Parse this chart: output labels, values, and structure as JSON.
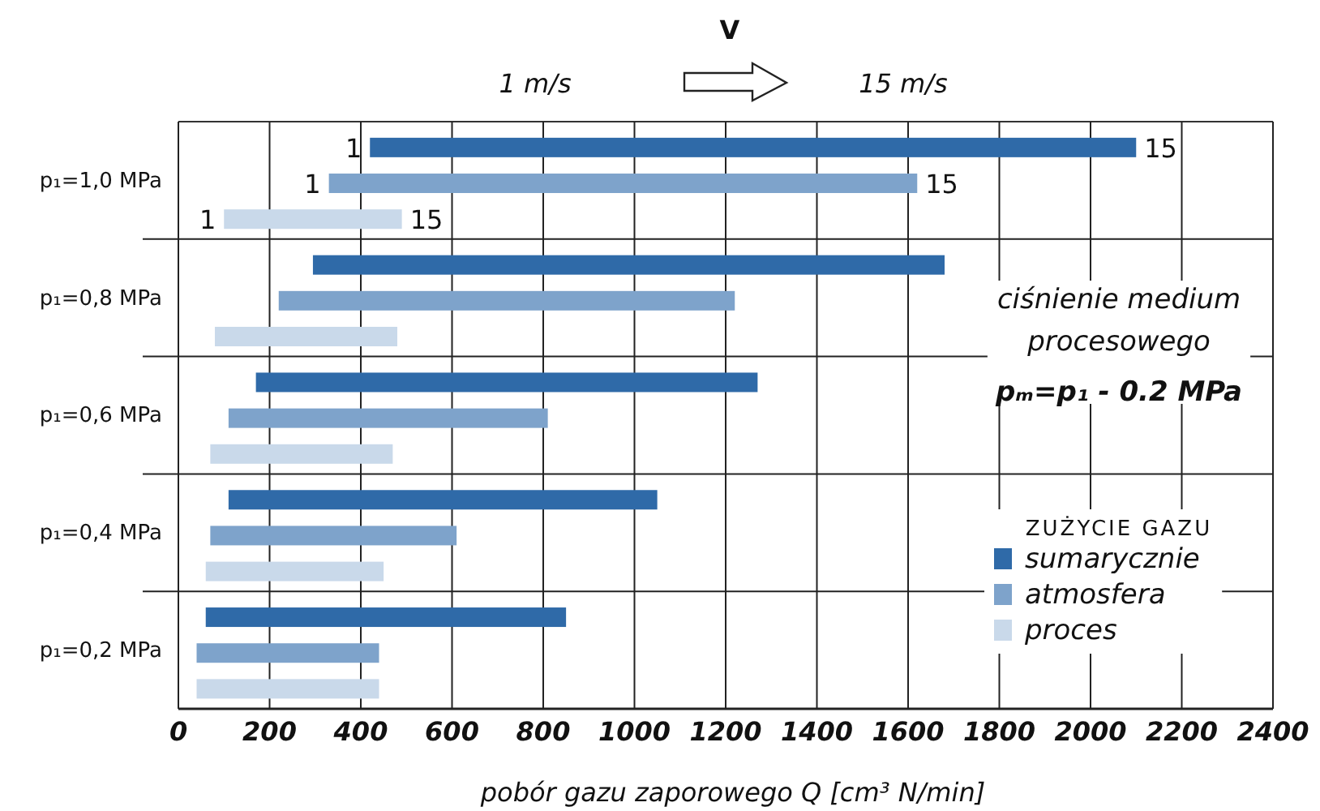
{
  "chart_data": {
    "type": "bar",
    "orientation": "horizontal",
    "xlabel": "pobór gazu zaporowego Q [cm³ N/min]",
    "legend_title": "ZUŻYCIE GAZU",
    "legend": "right",
    "grid": "x",
    "categories": [
      "p₁=1,0 MPa",
      "p₁=0,8 MPa",
      "p₁=0,6 MPa",
      "p₁=0,4 MPa",
      "p₁=0,2 MPa"
    ],
    "xlim": [
      0,
      2400
    ],
    "xticks": [
      0,
      200,
      400,
      600,
      800,
      1000,
      1200,
      1400,
      1600,
      1800,
      2000,
      2200,
      2400
    ],
    "series": [
      {
        "name": "sumarycznie",
        "color": "#2f6aa8",
        "base": [
          420,
          295,
          170,
          110,
          60
        ],
        "values": [
          1680,
          1385,
          1100,
          940,
          790
        ]
      },
      {
        "name": "atmosfera",
        "color": "#7ea3cb",
        "base": [
          330,
          220,
          110,
          70,
          40
        ],
        "values": [
          1290,
          1000,
          700,
          540,
          400
        ]
      },
      {
        "name": "proces",
        "color": "#c9d9ea",
        "base": [
          100,
          80,
          70,
          60,
          40
        ],
        "values": [
          390,
          400,
          400,
          390,
          400
        ]
      }
    ],
    "annotations": [
      "V",
      "1 m/s",
      "15 m/s",
      "ciśnienie medium procesowego",
      "pₘ=p₁ - 0.2 MPa",
      "1",
      "15",
      "1",
      "15",
      "1",
      "15"
    ]
  }
}
